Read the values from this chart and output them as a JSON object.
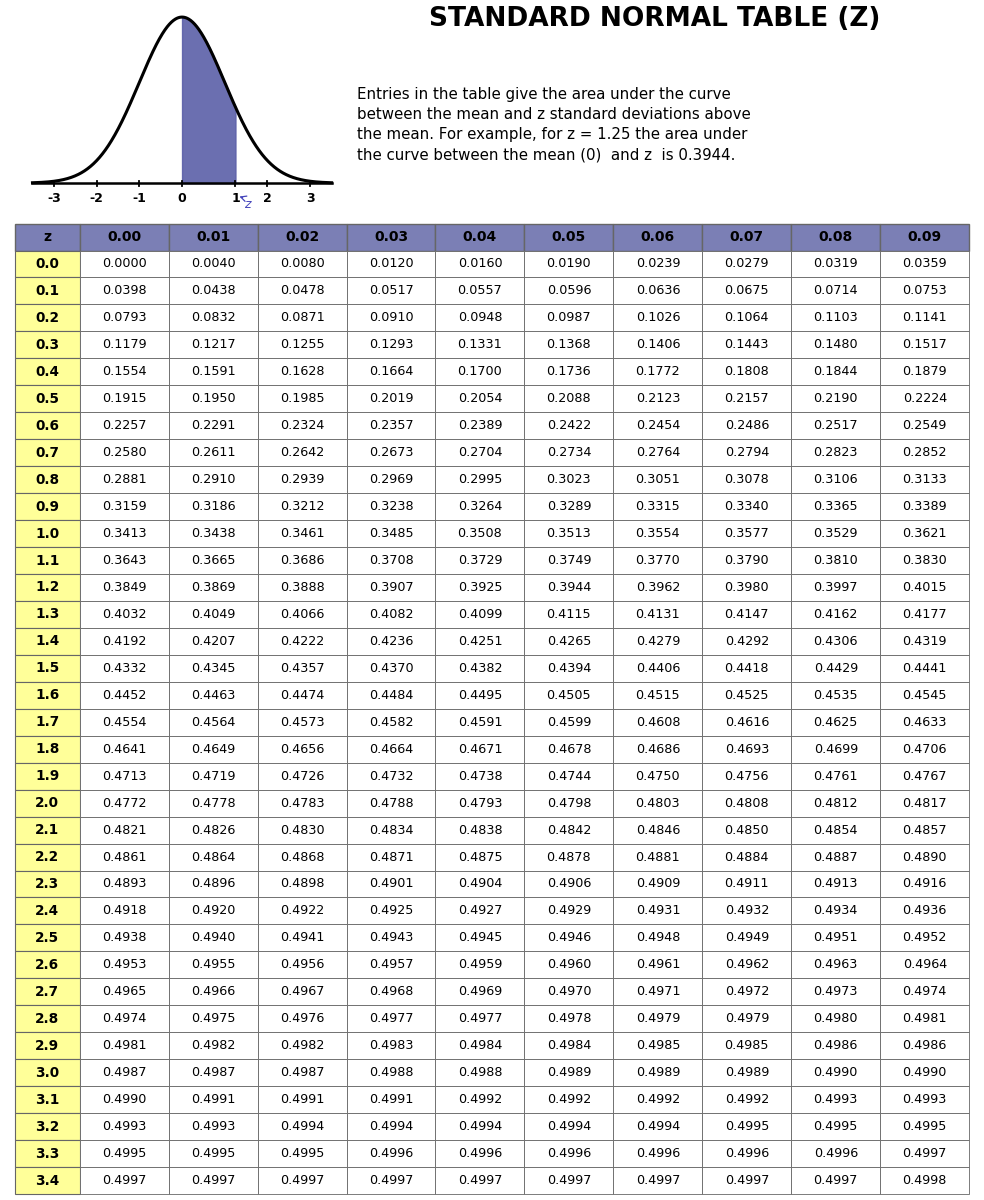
{
  "title_line1": "S",
  "title": "TANDARD  N",
  "title2": "ORMAL  T",
  "title3": "ABLE (Z)",
  "title_full": "Standard Normal Table (z)",
  "description_lines": [
    "Entries in the table give the area under the curve",
    "between the mean and ​z​ standard deviations above",
    "the mean. For example, for z = 1.25 the area under",
    "the curve between the mean (0)  and z  is 0.3944."
  ],
  "col_headers": [
    "z",
    "0.00",
    "0.01",
    "0.02",
    "0.03",
    "0.04",
    "0.05",
    "0.06",
    "0.07",
    "0.08",
    "0.09"
  ],
  "row_labels": [
    "0.0",
    "0.1",
    "0.2",
    "0.3",
    "0.4",
    "0.5",
    "0.6",
    "0.7",
    "0.8",
    "0.9",
    "1.0",
    "1.1",
    "1.2",
    "1.3",
    "1.4",
    "1.5",
    "1.6",
    "1.7",
    "1.8",
    "1.9",
    "2.0",
    "2.1",
    "2.2",
    "2.3",
    "2.4",
    "2.5",
    "2.6",
    "2.7",
    "2.8",
    "2.9",
    "3.0",
    "3.1",
    "3.2",
    "3.3",
    "3.4"
  ],
  "table_data": [
    [
      "0.0000",
      "0.0040",
      "0.0080",
      "0.0120",
      "0.0160",
      "0.0190",
      "0.0239",
      "0.0279",
      "0.0319",
      "0.0359"
    ],
    [
      "0.0398",
      "0.0438",
      "0.0478",
      "0.0517",
      "0.0557",
      "0.0596",
      "0.0636",
      "0.0675",
      "0.0714",
      "0.0753"
    ],
    [
      "0.0793",
      "0.0832",
      "0.0871",
      "0.0910",
      "0.0948",
      "0.0987",
      "0.1026",
      "0.1064",
      "0.1103",
      "0.1141"
    ],
    [
      "0.1179",
      "0.1217",
      "0.1255",
      "0.1293",
      "0.1331",
      "0.1368",
      "0.1406",
      "0.1443",
      "0.1480",
      "0.1517"
    ],
    [
      "0.1554",
      "0.1591",
      "0.1628",
      "0.1664",
      "0.1700",
      "0.1736",
      "0.1772",
      "0.1808",
      "0.1844",
      "0.1879"
    ],
    [
      "0.1915",
      "0.1950",
      "0.1985",
      "0.2019",
      "0.2054",
      "0.2088",
      "0.2123",
      "0.2157",
      "0.2190",
      "0.2224"
    ],
    [
      "0.2257",
      "0.2291",
      "0.2324",
      "0.2357",
      "0.2389",
      "0.2422",
      "0.2454",
      "0.2486",
      "0.2517",
      "0.2549"
    ],
    [
      "0.2580",
      "0.2611",
      "0.2642",
      "0.2673",
      "0.2704",
      "0.2734",
      "0.2764",
      "0.2794",
      "0.2823",
      "0.2852"
    ],
    [
      "0.2881",
      "0.2910",
      "0.2939",
      "0.2969",
      "0.2995",
      "0.3023",
      "0.3051",
      "0.3078",
      "0.3106",
      "0.3133"
    ],
    [
      "0.3159",
      "0.3186",
      "0.3212",
      "0.3238",
      "0.3264",
      "0.3289",
      "0.3315",
      "0.3340",
      "0.3365",
      "0.3389"
    ],
    [
      "0.3413",
      "0.3438",
      "0.3461",
      "0.3485",
      "0.3508",
      "0.3513",
      "0.3554",
      "0.3577",
      "0.3529",
      "0.3621"
    ],
    [
      "0.3643",
      "0.3665",
      "0.3686",
      "0.3708",
      "0.3729",
      "0.3749",
      "0.3770",
      "0.3790",
      "0.3810",
      "0.3830"
    ],
    [
      "0.3849",
      "0.3869",
      "0.3888",
      "0.3907",
      "0.3925",
      "0.3944",
      "0.3962",
      "0.3980",
      "0.3997",
      "0.4015"
    ],
    [
      "0.4032",
      "0.4049",
      "0.4066",
      "0.4082",
      "0.4099",
      "0.4115",
      "0.4131",
      "0.4147",
      "0.4162",
      "0.4177"
    ],
    [
      "0.4192",
      "0.4207",
      "0.4222",
      "0.4236",
      "0.4251",
      "0.4265",
      "0.4279",
      "0.4292",
      "0.4306",
      "0.4319"
    ],
    [
      "0.4332",
      "0.4345",
      "0.4357",
      "0.4370",
      "0.4382",
      "0.4394",
      "0.4406",
      "0.4418",
      "0.4429",
      "0.4441"
    ],
    [
      "0.4452",
      "0.4463",
      "0.4474",
      "0.4484",
      "0.4495",
      "0.4505",
      "0.4515",
      "0.4525",
      "0.4535",
      "0.4545"
    ],
    [
      "0.4554",
      "0.4564",
      "0.4573",
      "0.4582",
      "0.4591",
      "0.4599",
      "0.4608",
      "0.4616",
      "0.4625",
      "0.4633"
    ],
    [
      "0.4641",
      "0.4649",
      "0.4656",
      "0.4664",
      "0.4671",
      "0.4678",
      "0.4686",
      "0.4693",
      "0.4699",
      "0.4706"
    ],
    [
      "0.4713",
      "0.4719",
      "0.4726",
      "0.4732",
      "0.4738",
      "0.4744",
      "0.4750",
      "0.4756",
      "0.4761",
      "0.4767"
    ],
    [
      "0.4772",
      "0.4778",
      "0.4783",
      "0.4788",
      "0.4793",
      "0.4798",
      "0.4803",
      "0.4808",
      "0.4812",
      "0.4817"
    ],
    [
      "0.4821",
      "0.4826",
      "0.4830",
      "0.4834",
      "0.4838",
      "0.4842",
      "0.4846",
      "0.4850",
      "0.4854",
      "0.4857"
    ],
    [
      "0.4861",
      "0.4864",
      "0.4868",
      "0.4871",
      "0.4875",
      "0.4878",
      "0.4881",
      "0.4884",
      "0.4887",
      "0.4890"
    ],
    [
      "0.4893",
      "0.4896",
      "0.4898",
      "0.4901",
      "0.4904",
      "0.4906",
      "0.4909",
      "0.4911",
      "0.4913",
      "0.4916"
    ],
    [
      "0.4918",
      "0.4920",
      "0.4922",
      "0.4925",
      "0.4927",
      "0.4929",
      "0.4931",
      "0.4932",
      "0.4934",
      "0.4936"
    ],
    [
      "0.4938",
      "0.4940",
      "0.4941",
      "0.4943",
      "0.4945",
      "0.4946",
      "0.4948",
      "0.4949",
      "0.4951",
      "0.4952"
    ],
    [
      "0.4953",
      "0.4955",
      "0.4956",
      "0.4957",
      "0.4959",
      "0.4960",
      "0.4961",
      "0.4962",
      "0.4963",
      "0.4964"
    ],
    [
      "0.4965",
      "0.4966",
      "0.4967",
      "0.4968",
      "0.4969",
      "0.4970",
      "0.4971",
      "0.4972",
      "0.4973",
      "0.4974"
    ],
    [
      "0.4974",
      "0.4975",
      "0.4976",
      "0.4977",
      "0.4977",
      "0.4978",
      "0.4979",
      "0.4979",
      "0.4980",
      "0.4981"
    ],
    [
      "0.4981",
      "0.4982",
      "0.4982",
      "0.4983",
      "0.4984",
      "0.4984",
      "0.4985",
      "0.4985",
      "0.4986",
      "0.4986"
    ],
    [
      "0.4987",
      "0.4987",
      "0.4987",
      "0.4988",
      "0.4988",
      "0.4989",
      "0.4989",
      "0.4989",
      "0.4990",
      "0.4990"
    ],
    [
      "0.4990",
      "0.4991",
      "0.4991",
      "0.4991",
      "0.4992",
      "0.4992",
      "0.4992",
      "0.4992",
      "0.4993",
      "0.4993"
    ],
    [
      "0.4993",
      "0.4993",
      "0.4994",
      "0.4994",
      "0.4994",
      "0.4994",
      "0.4994",
      "0.4995",
      "0.4995",
      "0.4995"
    ],
    [
      "0.4995",
      "0.4995",
      "0.4995",
      "0.4996",
      "0.4996",
      "0.4996",
      "0.4996",
      "0.4996",
      "0.4996",
      "0.4997"
    ],
    [
      "0.4997",
      "0.4997",
      "0.4997",
      "0.4997",
      "0.4997",
      "0.4997",
      "0.4997",
      "0.4997",
      "0.4997",
      "0.4998"
    ]
  ],
  "header_bg": "#7b7fb5",
  "row_label_bg": "#ffff99",
  "data_bg": "#ffffff",
  "border_color": "#666666",
  "bg_color": "#ffffff",
  "fig_width": 9.84,
  "fig_height": 12.0,
  "dpi": 100
}
